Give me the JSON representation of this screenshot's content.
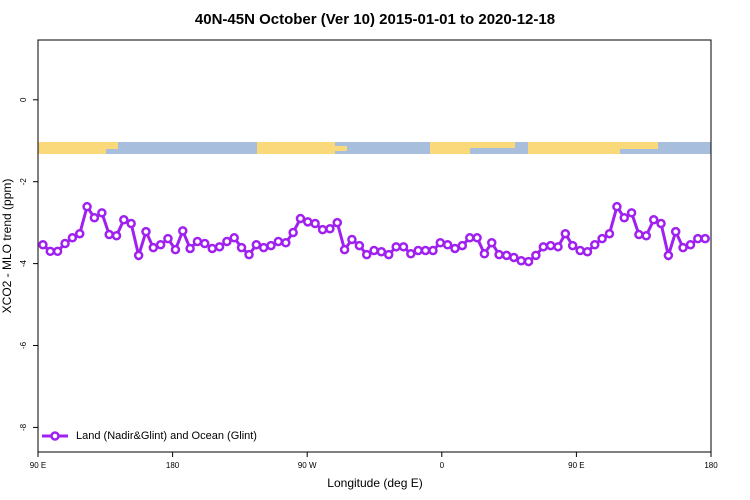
{
  "chart_data": {
    "type": "line",
    "title": "40N-45N October (Ver 10)   2015-01-01 to 2020-12-18",
    "xlabel": "Longitude (deg E)",
    "ylabel": "XCO2 - MLO trend (ppm)",
    "x": [
      93.3,
      98.2,
      103.1,
      108.1,
      113.0,
      117.9,
      122.8,
      127.7,
      132.7,
      137.6,
      142.5,
      147.4,
      152.3,
      157.3,
      162.2,
      167.1,
      172.0,
      176.9,
      181.9,
      186.8,
      191.7,
      196.6,
      201.5,
      206.5,
      211.4,
      216.3,
      221.2,
      226.1,
      231.1,
      236.0,
      240.9,
      245.8,
      250.7,
      255.7,
      260.6,
      265.5,
      270.4,
      275.3,
      280.3,
      285.2,
      290.1,
      295.0,
      299.9,
      304.9,
      309.8,
      314.7,
      319.6,
      324.5,
      329.5,
      334.4,
      339.3,
      344.2,
      349.1,
      354.1,
      359.0,
      363.9,
      368.8,
      373.7,
      378.7,
      383.6,
      388.5,
      393.4,
      398.3,
      403.3,
      408.2,
      413.1,
      418.0,
      422.9,
      427.9,
      432.8,
      437.7,
      442.6,
      447.5,
      452.5,
      457.4,
      462.3,
      467.2,
      472.1,
      477.1,
      482.0,
      486.9,
      491.8,
      496.7,
      501.7,
      506.6,
      511.5,
      516.4,
      521.3,
      526.3,
      531.2,
      536.1
    ],
    "series": [
      {
        "name": "Land (Nadir&Glint) and Ocean (Glint)",
        "color": "#a020f0",
        "values": [
          -3.54,
          -3.7,
          -3.7,
          -3.51,
          -3.37,
          -3.27,
          -2.61,
          -2.88,
          -2.76,
          -3.29,
          -3.32,
          -2.93,
          -3.02,
          -3.8,
          -3.22,
          -3.61,
          -3.54,
          -3.39,
          -3.66,
          -3.2,
          -3.63,
          -3.46,
          -3.51,
          -3.63,
          -3.59,
          -3.46,
          -3.37,
          -3.61,
          -3.78,
          -3.54,
          -3.61,
          -3.56,
          -3.46,
          -3.49,
          -3.24,
          -2.9,
          -2.98,
          -3.02,
          -3.17,
          -3.15,
          -3.0,
          -3.66,
          -3.41,
          -3.56,
          -3.78,
          -3.68,
          -3.71,
          -3.78,
          -3.59,
          -3.59,
          -3.76,
          -3.68,
          -3.68,
          -3.68,
          -3.49,
          -3.54,
          -3.63,
          -3.56,
          -3.37,
          -3.37,
          -3.76,
          -3.49,
          -3.78,
          -3.8,
          -3.85,
          -3.93,
          -3.95,
          -3.8,
          -3.59,
          -3.56,
          -3.59,
          -3.27,
          -3.56,
          -3.68,
          -3.71,
          -3.54,
          -3.39,
          -3.27,
          -2.61,
          -2.88,
          -2.76,
          -3.29,
          -3.32,
          -2.93,
          -3.02,
          -3.8,
          -3.22,
          -3.61,
          -3.54,
          -3.39,
          -3.39
        ]
      }
    ],
    "xlim": [
      90,
      540
    ],
    "xticks": [
      {
        "value": 90,
        "label": "90 E"
      },
      180,
      {
        "value": 270,
        "label": "90 W"
      },
      {
        "value": 360,
        "label": "0"
      },
      {
        "value": 450,
        "label": "90 E"
      },
      {
        "value": 540,
        "label": "180"
      }
    ],
    "ylim": [
      -8.6,
      1.46
    ],
    "yticks": [
      0,
      -2,
      -4,
      -6,
      -8
    ],
    "legend": "bottom-left"
  }
}
